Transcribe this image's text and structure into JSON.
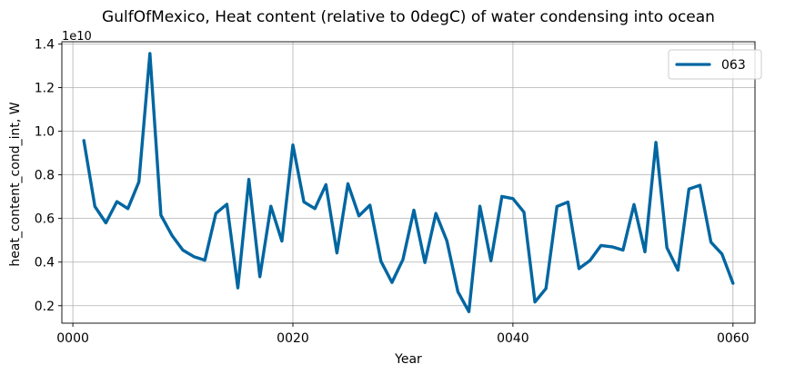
{
  "chart_data": {
    "type": "line",
    "title": "GulfOfMexico, Heat content (relative to 0degC) of water condensing into ocean",
    "xlabel": "Year",
    "ylabel": "heat_content_cond_int, W",
    "y_offset_label": "1e10",
    "xlim": [
      -1,
      62
    ],
    "ylim": [
      0.12,
      1.41
    ],
    "x_ticks": [
      {
        "value": 0,
        "label": "0000"
      },
      {
        "value": 20,
        "label": "0020"
      },
      {
        "value": 40,
        "label": "0040"
      },
      {
        "value": 60,
        "label": "0060"
      }
    ],
    "y_ticks": [
      {
        "value": 0.2,
        "label": "0.2"
      },
      {
        "value": 0.4,
        "label": "0.4"
      },
      {
        "value": 0.6,
        "label": "0.6"
      },
      {
        "value": 0.8,
        "label": "0.8"
      },
      {
        "value": 1.0,
        "label": "1.0"
      },
      {
        "value": 1.2,
        "label": "1.2"
      },
      {
        "value": 1.4,
        "label": "1.4"
      }
    ],
    "grid": true,
    "legend_position": "top-right",
    "series": [
      {
        "name": "063",
        "color": "#0066a1",
        "x": [
          1,
          2,
          3,
          4,
          5,
          6,
          7,
          8,
          9,
          10,
          11,
          12,
          13,
          14,
          15,
          16,
          17,
          18,
          19,
          20,
          21,
          22,
          23,
          24,
          25,
          26,
          27,
          28,
          29,
          30,
          31,
          32,
          33,
          34,
          35,
          36,
          37,
          38,
          39,
          40,
          41,
          42,
          43,
          44,
          45,
          46,
          47,
          48,
          49,
          50,
          51,
          52,
          53,
          54,
          55,
          56,
          57,
          58,
          59,
          60
        ],
        "values": [
          0.957,
          0.655,
          0.58,
          0.677,
          0.645,
          0.768,
          1.356,
          0.615,
          0.523,
          0.455,
          0.425,
          0.409,
          0.623,
          0.665,
          0.282,
          0.779,
          0.333,
          0.656,
          0.496,
          0.937,
          0.676,
          0.645,
          0.755,
          0.442,
          0.759,
          0.612,
          0.661,
          0.404,
          0.307,
          0.412,
          0.638,
          0.398,
          0.623,
          0.497,
          0.264,
          0.173,
          0.656,
          0.406,
          0.701,
          0.691,
          0.629,
          0.217,
          0.279,
          0.655,
          0.675,
          0.37,
          0.407,
          0.476,
          0.47,
          0.455,
          0.664,
          0.447,
          0.949,
          0.466,
          0.363,
          0.735,
          0.752,
          0.491,
          0.437,
          0.303
        ]
      }
    ]
  }
}
